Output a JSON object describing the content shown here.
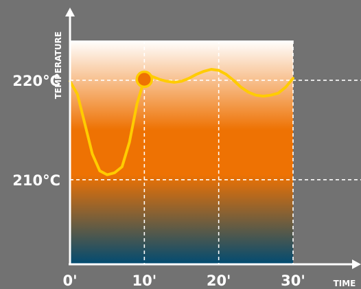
{
  "chart_data": {
    "type": "line",
    "xlabel": "TIME",
    "ylabel": "TEMPERATURE",
    "x_ticks": [
      "0'",
      "10'",
      "20'",
      "30'"
    ],
    "x_tick_values": [
      0,
      10,
      20,
      30
    ],
    "y_ticks": [
      "210°C",
      "220°C"
    ],
    "y_tick_values": [
      210,
      220
    ],
    "xlim": [
      0,
      30
    ],
    "ylim": [
      201.5,
      224
    ],
    "grid": true,
    "series": [
      {
        "x": [
          0,
          1,
          2,
          3,
          4,
          5,
          6,
          7,
          8,
          9,
          10,
          11,
          12,
          13,
          14,
          15,
          16,
          17,
          18,
          19,
          20,
          21,
          22,
          23,
          24,
          25,
          26,
          27,
          28,
          29,
          30
        ],
        "y": [
          219.9,
          218.6,
          215.6,
          212.6,
          210.9,
          210.5,
          210.7,
          211.3,
          213.8,
          217.6,
          220.1,
          220.4,
          220.1,
          219.9,
          219.8,
          219.9,
          220.2,
          220.6,
          220.9,
          221.1,
          221.0,
          220.6,
          220.0,
          219.3,
          218.8,
          218.5,
          218.4,
          218.5,
          218.7,
          219.3,
          220.2
        ]
      }
    ],
    "highlight_point": {
      "x": 10,
      "y": 220.1
    },
    "colors": {
      "background": "#727272",
      "line": "#ffcc00",
      "gradient_top": "#ffffff",
      "gradient_mid": "#ee7203",
      "gradient_bottom": "#004b72",
      "grid": "#ffffff"
    }
  }
}
